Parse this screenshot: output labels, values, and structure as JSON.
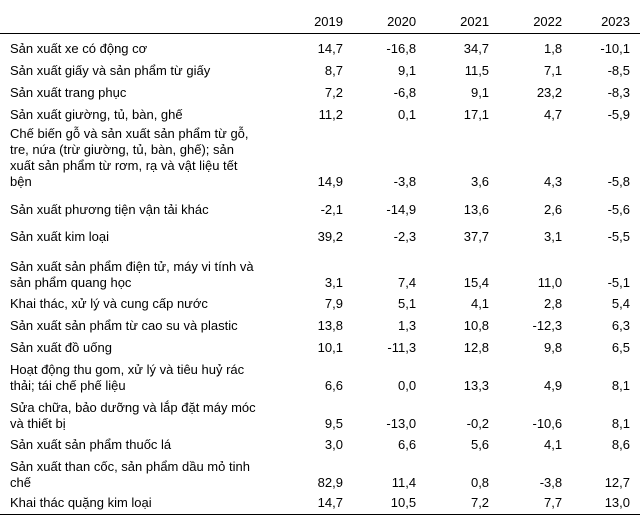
{
  "table": {
    "header": [
      "2019",
      "2020",
      "2021",
      "2022",
      "2023"
    ],
    "rows": [
      [
        "Sản xuất xe có động cơ",
        "14,7",
        "-16,8",
        "34,7",
        "1,8",
        "-10,1"
      ],
      [
        "Sản xuất giấy và sản phẩm từ giấy",
        "8,7",
        "9,1",
        "11,5",
        "7,1",
        "-8,5"
      ],
      [
        "Sản xuất trang phục",
        "7,2",
        "-6,8",
        "9,1",
        "23,2",
        "-8,3"
      ],
      [
        "Sản xuất giường, tủ, bàn, ghế",
        "11,2",
        "0,1",
        "17,1",
        "4,7",
        "-5,9"
      ],
      [
        "Chế biến gỗ và sản xuất sản phẩm từ gỗ, tre, nứa (trừ giường, tủ, bàn, ghế); sản xuất sản phẩm từ rơm, rạ và vật liệu tết bện",
        "14,9",
        "-3,8",
        "3,6",
        "4,3",
        "-5,8"
      ],
      [
        "Sản xuất phương tiện vận tải khác",
        "-2,1",
        "-14,9",
        "13,6",
        "2,6",
        "-5,6"
      ],
      [
        "Sản xuất kim loại",
        "39,2",
        "-2,3",
        "37,7",
        "3,1",
        "-5,5"
      ],
      [
        "Sản xuất sản phẩm điện tử, máy vi tính và sản phẩm quang học",
        "3,1",
        "7,4",
        "15,4",
        "11,0",
        "-5,1"
      ],
      [
        "Khai thác, xử lý và cung cấp nước",
        "7,9",
        "5,1",
        "4,1",
        "2,8",
        "5,4"
      ],
      [
        "Sản xuất sản phẩm từ cao su và plastic",
        "13,8",
        "1,3",
        "10,8",
        "-12,3",
        "6,3"
      ],
      [
        "Sản xuất đồ uống",
        "10,1",
        "-11,3",
        "12,8",
        "9,8",
        "6,5"
      ],
      [
        "Hoạt động thu gom, xử lý và tiêu huỷ rác thải; tái chế phế liệu",
        "6,6",
        "0,0",
        "13,3",
        "4,9",
        "8,1"
      ],
      [
        "Sửa chữa, bảo dưỡng và lắp đặt máy móc và thiết bị",
        "9,5",
        "-13,0",
        "-0,2",
        "-10,6",
        "8,1"
      ],
      [
        "Sản xuất sản phẩm thuốc lá",
        "3,0",
        "6,6",
        "5,6",
        "4,1",
        "8,6"
      ],
      [
        "Sản xuất than cốc, sản phẩm dầu mỏ tinh chế",
        "82,9",
        "11,4",
        "0,8",
        "-3,8",
        "12,7"
      ],
      [
        "Khai thác quặng kim loại",
        "14,7",
        "10,5",
        "7,2",
        "7,7",
        "13,0"
      ]
    ]
  }
}
